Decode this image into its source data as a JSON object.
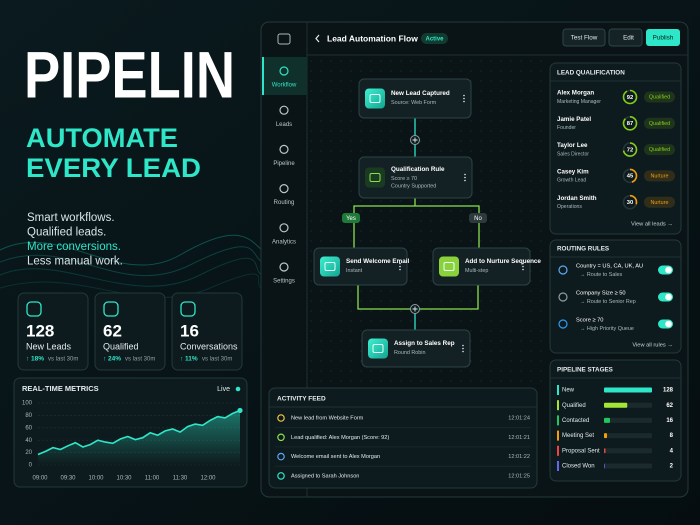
{
  "hero": {
    "brand": "PIPELIN",
    "headline": [
      "AUTOMATE",
      "EVERY LEAD"
    ],
    "tagline": [
      "Smart workflows.",
      "Qualified leads.",
      "More conversions.",
      "Less manual work."
    ]
  },
  "stats": [
    {
      "value": 128,
      "label": "New Leads",
      "change": "↑ 18%",
      "period": "vs last 30m"
    },
    {
      "value": 62,
      "label": "Qualified",
      "change": "↑ 24%",
      "period": "vs last 30m"
    },
    {
      "value": 16,
      "label": "Conversations",
      "change": "↑ 11%",
      "period": "vs last 30m"
    }
  ],
  "metrics": {
    "title": "REAL-TIME METRICS",
    "status": "Live",
    "xticks": [
      "09:00",
      "09:30",
      "10:00",
      "10:30",
      "11:00",
      "11:30",
      "12:00"
    ],
    "ylim": [
      0,
      100
    ],
    "yticks": [
      0,
      20,
      40,
      60,
      80,
      100
    ],
    "values": [
      17,
      22,
      28,
      25,
      31,
      36,
      29,
      33,
      40,
      37,
      35,
      42,
      46,
      41,
      44,
      52,
      48,
      55,
      58,
      53,
      62,
      66,
      64,
      72,
      78,
      76,
      83,
      88
    ]
  },
  "app": {
    "title": "Lead Automation Flow",
    "status": "Active",
    "buttons": [
      "Test Flow",
      "Edit",
      "Publish"
    ],
    "nav": [
      "Workflow",
      "Leads",
      "Pipeline",
      "Routing",
      "Analytics",
      "Settings"
    ]
  },
  "flow": {
    "nodes": [
      {
        "title": "New Lead Captured",
        "detail": [
          "Source: Web Form"
        ]
      },
      {
        "title": "Qualification Rule",
        "detail": [
          "Score ≥ 70",
          "Country Supported"
        ]
      },
      {
        "title": "Send Welcome Email",
        "detail": [
          "Instant"
        ]
      },
      {
        "title": "Add to Nurture Sequence",
        "detail": [
          "Multi-step"
        ]
      },
      {
        "title": "Assign to Sales Rep",
        "detail": [
          "Round Robin"
        ]
      }
    ],
    "branches": [
      "Yes",
      "No"
    ]
  },
  "activity": {
    "title": "ACTIVITY FEED",
    "items": [
      {
        "text": "New lead from Website Form",
        "time": "12:01:24"
      },
      {
        "text": "Lead qualified: Alex Morgan (Score: 92)",
        "time": "12:01:21"
      },
      {
        "text": "Welcome email sent to Alex Morgan",
        "time": "12:01:22"
      },
      {
        "text": "Assigned to Sarah Johnson",
        "time": "12:01:25"
      }
    ]
  },
  "qualification": {
    "title": "LEAD QUALIFICATION",
    "leads": [
      {
        "name": "Alex Morgan",
        "role": "Marketing Manager",
        "score": 92,
        "status": "Qualified",
        "color": "#84cc16"
      },
      {
        "name": "Jamie Patel",
        "role": "Founder",
        "score": 87,
        "status": "Qualified",
        "color": "#84cc16"
      },
      {
        "name": "Taylor Lee",
        "role": "Sales Director",
        "score": 72,
        "status": "Qualified",
        "color": "#84cc16"
      },
      {
        "name": "Casey Kim",
        "role": "Growth Lead",
        "score": 45,
        "status": "Nurture",
        "color": "#f59e0b"
      },
      {
        "name": "Jordan Smith",
        "role": "Operations",
        "score": 30,
        "status": "Nurture",
        "color": "#f59e0b"
      }
    ],
    "link": "View all leads →"
  },
  "routing": {
    "title": "ROUTING RULES",
    "rules": [
      {
        "condition": "Country = US, CA, UK, AU",
        "action": "→ Route to Sales"
      },
      {
        "condition": "Company Size ≥ 50",
        "action": "→ Route to Senior Rep"
      },
      {
        "condition": "Score ≥ 70",
        "action": "→ High Priority Queue"
      }
    ],
    "link": "View all rules →"
  },
  "pipeline": {
    "title": "PIPELINE STAGES",
    "stages": [
      {
        "name": "New",
        "count": 128,
        "color": "#2ee6c8"
      },
      {
        "name": "Qualified",
        "count": 62,
        "color": "#a3e635"
      },
      {
        "name": "Contacted",
        "count": 16,
        "color": "#22c55e"
      },
      {
        "name": "Meeting Set",
        "count": 8,
        "color": "#f59e0b"
      },
      {
        "name": "Proposal Sent",
        "count": 4,
        "color": "#ef4444"
      },
      {
        "name": "Closed Won",
        "count": 2,
        "color": "#6366f1"
      }
    ]
  }
}
